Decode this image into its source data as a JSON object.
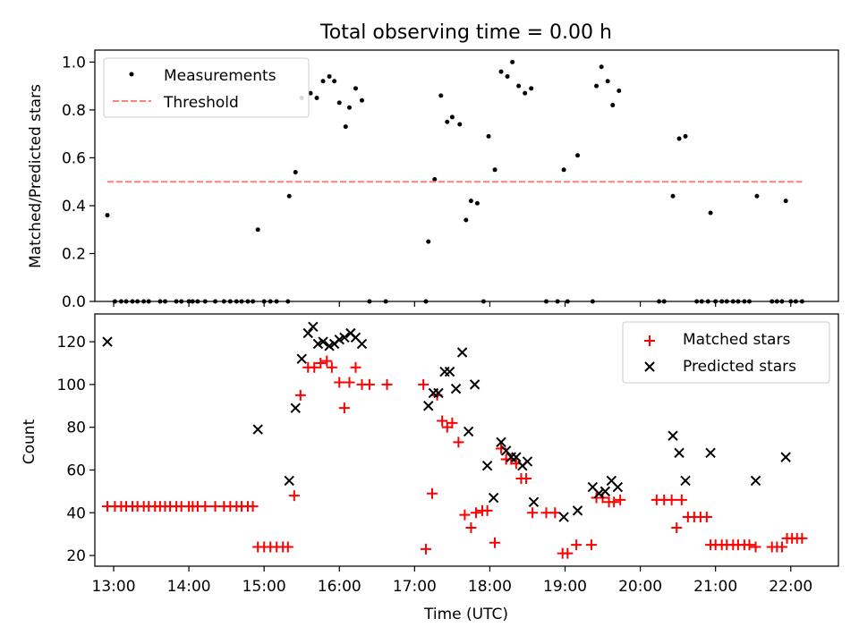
{
  "figure": {
    "title": "Total observing time = 0.00 h"
  },
  "chart_data": [
    {
      "type": "scatter",
      "panel": "top",
      "title": "Total observing time = 0.00 h",
      "xlabel": "",
      "ylabel": "Matched/Predicted stars",
      "xlim": [
        "12:45",
        "22:38"
      ],
      "ylim": [
        0,
        1.05
      ],
      "yticks": [
        "0.0",
        "0.2",
        "0.4",
        "0.6",
        "0.8",
        "1.0"
      ],
      "xtick_times": [
        "13:00",
        "14:00",
        "15:00",
        "16:00",
        "17:00",
        "18:00",
        "19:00",
        "20:00",
        "21:00",
        "22:00"
      ],
      "grid": false,
      "legend_position": "top-left",
      "series": [
        {
          "name": "Measurements",
          "style": "point",
          "color": "#000000",
          "points": [
            [
              "12:55",
              0.36
            ],
            [
              "13:01",
              0.0
            ],
            [
              "13:06",
              0.0
            ],
            [
              "13:10",
              0.0
            ],
            [
              "13:15",
              0.0
            ],
            [
              "13:19",
              0.0
            ],
            [
              "13:24",
              0.0
            ],
            [
              "13:28",
              0.0
            ],
            [
              "13:37",
              0.0
            ],
            [
              "13:41",
              0.0
            ],
            [
              "13:50",
              0.0
            ],
            [
              "13:54",
              0.0
            ],
            [
              "14:00",
              0.0
            ],
            [
              "14:03",
              0.0
            ],
            [
              "14:07",
              0.0
            ],
            [
              "14:13",
              0.0
            ],
            [
              "14:21",
              0.0
            ],
            [
              "14:28",
              0.0
            ],
            [
              "14:33",
              0.0
            ],
            [
              "14:38",
              0.0
            ],
            [
              "14:42",
              0.0
            ],
            [
              "14:47",
              0.0
            ],
            [
              "14:51",
              0.0
            ],
            [
              "14:55",
              0.3
            ],
            [
              "15:00",
              0.0
            ],
            [
              "15:05",
              0.0
            ],
            [
              "15:10",
              0.0
            ],
            [
              "15:19",
              0.0
            ],
            [
              "15:20",
              0.44
            ],
            [
              "15:25",
              0.54
            ],
            [
              "15:30",
              0.85
            ],
            [
              "15:37",
              0.87
            ],
            [
              "15:42",
              0.85
            ],
            [
              "15:47",
              0.92
            ],
            [
              "15:52",
              0.94
            ],
            [
              "15:56",
              0.92
            ],
            [
              "16:00",
              0.83
            ],
            [
              "16:05",
              0.73
            ],
            [
              "16:08",
              0.81
            ],
            [
              "16:13",
              0.89
            ],
            [
              "16:18",
              0.84
            ],
            [
              "16:24",
              0.0
            ],
            [
              "16:37",
              0.0
            ],
            [
              "17:09",
              0.0
            ],
            [
              "17:11",
              0.25
            ],
            [
              "17:16",
              0.51
            ],
            [
              "17:21",
              0.86
            ],
            [
              "17:26",
              0.75
            ],
            [
              "17:30",
              0.77
            ],
            [
              "17:36",
              0.74
            ],
            [
              "17:41",
              0.34
            ],
            [
              "17:45",
              0.42
            ],
            [
              "17:50",
              0.41
            ],
            [
              "17:55",
              0.0
            ],
            [
              "17:59",
              0.69
            ],
            [
              "18:04",
              0.55
            ],
            [
              "18:09",
              0.96
            ],
            [
              "18:14",
              0.94
            ],
            [
              "18:18",
              1.0
            ],
            [
              "18:23",
              0.9
            ],
            [
              "18:28",
              0.87
            ],
            [
              "18:33",
              0.89
            ],
            [
              "18:45",
              0.0
            ],
            [
              "18:54",
              0.0
            ],
            [
              "18:59",
              0.55
            ],
            [
              "19:02",
              0.0
            ],
            [
              "19:10",
              0.61
            ],
            [
              "19:22",
              0.0
            ],
            [
              "19:25",
              0.9
            ],
            [
              "19:29",
              0.98
            ],
            [
              "19:34",
              0.92
            ],
            [
              "19:38",
              0.82
            ],
            [
              "19:43",
              0.88
            ],
            [
              "20:15",
              0.0
            ],
            [
              "20:19",
              0.0
            ],
            [
              "20:26",
              0.44
            ],
            [
              "20:31",
              0.68
            ],
            [
              "20:36",
              0.69
            ],
            [
              "20:45",
              0.0
            ],
            [
              "20:49",
              0.0
            ],
            [
              "20:54",
              0.0
            ],
            [
              "20:56",
              0.37
            ],
            [
              "21:00",
              0.0
            ],
            [
              "21:05",
              0.0
            ],
            [
              "21:09",
              0.0
            ],
            [
              "21:14",
              0.0
            ],
            [
              "21:18",
              0.0
            ],
            [
              "21:23",
              0.0
            ],
            [
              "21:27",
              0.0
            ],
            [
              "21:33",
              0.44
            ],
            [
              "21:45",
              0.0
            ],
            [
              "21:49",
              0.0
            ],
            [
              "21:53",
              0.0
            ],
            [
              "21:56",
              0.42
            ],
            [
              "22:00",
              0.0
            ],
            [
              "22:04",
              0.0
            ],
            [
              "22:09",
              0.0
            ]
          ]
        },
        {
          "name": "Threshold",
          "style": "dashed-line",
          "color": "#ff7f7f",
          "points": [
            [
              "12:55",
              0.5
            ],
            [
              "22:09",
              0.5
            ]
          ]
        }
      ]
    },
    {
      "type": "scatter",
      "panel": "bottom",
      "xlabel": "Time (UTC)",
      "ylabel": "Count",
      "xlim": [
        "12:45",
        "22:38"
      ],
      "ylim": [
        15,
        133
      ],
      "yticks": [
        "20",
        "40",
        "60",
        "80",
        "100",
        "120"
      ],
      "xticks": [
        "13:00",
        "14:00",
        "15:00",
        "16:00",
        "17:00",
        "18:00",
        "19:00",
        "20:00",
        "21:00",
        "22:00"
      ],
      "grid": false,
      "legend_position": "top-right",
      "series": [
        {
          "name": "Matched stars",
          "marker": "plus",
          "color": "#ff0000",
          "points": [
            [
              "12:55",
              43
            ],
            [
              "13:01",
              43
            ],
            [
              "13:06",
              43
            ],
            [
              "13:10",
              43
            ],
            [
              "13:15",
              43
            ],
            [
              "13:19",
              43
            ],
            [
              "13:24",
              43
            ],
            [
              "13:28",
              43
            ],
            [
              "13:33",
              43
            ],
            [
              "13:37",
              43
            ],
            [
              "13:41",
              43
            ],
            [
              "13:45",
              43
            ],
            [
              "13:50",
              43
            ],
            [
              "13:54",
              43
            ],
            [
              "14:00",
              43
            ],
            [
              "14:03",
              43
            ],
            [
              "14:07",
              43
            ],
            [
              "14:13",
              43
            ],
            [
              "14:21",
              43
            ],
            [
              "14:28",
              43
            ],
            [
              "14:33",
              43
            ],
            [
              "14:38",
              43
            ],
            [
              "14:42",
              43
            ],
            [
              "14:47",
              43
            ],
            [
              "14:51",
              43
            ],
            [
              "14:55",
              24
            ],
            [
              "15:00",
              24
            ],
            [
              "15:05",
              24
            ],
            [
              "15:10",
              24
            ],
            [
              "15:15",
              24
            ],
            [
              "15:19",
              24
            ],
            [
              "15:24",
              48
            ],
            [
              "15:29",
              95
            ],
            [
              "15:35",
              108
            ],
            [
              "15:40",
              108
            ],
            [
              "15:45",
              110
            ],
            [
              "15:50",
              111
            ],
            [
              "15:54",
              108
            ],
            [
              "16:00",
              101
            ],
            [
              "16:04",
              89
            ],
            [
              "16:08",
              101
            ],
            [
              "16:13",
              108
            ],
            [
              "16:18",
              100
            ],
            [
              "16:24",
              100
            ],
            [
              "16:38",
              100
            ],
            [
              "17:07",
              100
            ],
            [
              "17:09",
              23
            ],
            [
              "17:14",
              49
            ],
            [
              "17:18",
              95
            ],
            [
              "17:22",
              83
            ],
            [
              "17:26",
              80
            ],
            [
              "17:30",
              82
            ],
            [
              "17:35",
              73
            ],
            [
              "17:40",
              39
            ],
            [
              "17:45",
              33
            ],
            [
              "17:49",
              40
            ],
            [
              "17:54",
              41
            ],
            [
              "17:58",
              41
            ],
            [
              "18:04",
              26
            ],
            [
              "18:09",
              70
            ],
            [
              "18:13",
              65
            ],
            [
              "18:17",
              65
            ],
            [
              "18:21",
              63
            ],
            [
              "18:25",
              56
            ],
            [
              "18:29",
              56
            ],
            [
              "18:34",
              40
            ],
            [
              "18:45",
              40
            ],
            [
              "18:52",
              40
            ],
            [
              "18:58",
              21
            ],
            [
              "19:02",
              21
            ],
            [
              "19:09",
              25
            ],
            [
              "19:21",
              25
            ],
            [
              "19:25",
              47
            ],
            [
              "19:30",
              47
            ],
            [
              "19:35",
              45
            ],
            [
              "19:39",
              45
            ],
            [
              "19:44",
              46
            ],
            [
              "20:13",
              46
            ],
            [
              "20:19",
              46
            ],
            [
              "20:25",
              46
            ],
            [
              "20:29",
              33
            ],
            [
              "20:33",
              46
            ],
            [
              "20:38",
              38
            ],
            [
              "20:43",
              38
            ],
            [
              "20:48",
              38
            ],
            [
              "20:53",
              38
            ],
            [
              "20:56",
              25
            ],
            [
              "21:00",
              25
            ],
            [
              "21:05",
              25
            ],
            [
              "21:09",
              25
            ],
            [
              "21:14",
              25
            ],
            [
              "21:18",
              25
            ],
            [
              "21:23",
              25
            ],
            [
              "21:27",
              25
            ],
            [
              "21:32",
              24
            ],
            [
              "21:45",
              24
            ],
            [
              "21:49",
              24
            ],
            [
              "21:53",
              24
            ],
            [
              "21:57",
              28
            ],
            [
              "22:01",
              28
            ],
            [
              "22:05",
              28
            ],
            [
              "22:09",
              28
            ]
          ]
        },
        {
          "name": "Predicted stars",
          "marker": "x",
          "color": "#000000",
          "points": [
            [
              "12:55",
              120
            ],
            [
              "14:55",
              79
            ],
            [
              "15:20",
              55
            ],
            [
              "15:25",
              89
            ],
            [
              "15:30",
              112
            ],
            [
              "15:35",
              124
            ],
            [
              "15:39",
              127
            ],
            [
              "15:43",
              119
            ],
            [
              "15:47",
              120
            ],
            [
              "15:52",
              118
            ],
            [
              "15:56",
              119
            ],
            [
              "16:00",
              121
            ],
            [
              "16:04",
              122
            ],
            [
              "16:09",
              124
            ],
            [
              "16:13",
              122
            ],
            [
              "16:18",
              119
            ],
            [
              "17:11",
              90
            ],
            [
              "17:15",
              96
            ],
            [
              "17:19",
              96
            ],
            [
              "17:24",
              106
            ],
            [
              "17:28",
              106
            ],
            [
              "17:33",
              98
            ],
            [
              "17:38",
              115
            ],
            [
              "17:43",
              78
            ],
            [
              "17:48",
              100
            ],
            [
              "17:58",
              62
            ],
            [
              "18:03",
              47
            ],
            [
              "18:09",
              73
            ],
            [
              "18:13",
              69
            ],
            [
              "18:17",
              66
            ],
            [
              "18:21",
              66
            ],
            [
              "18:26",
              62
            ],
            [
              "18:30",
              64
            ],
            [
              "18:35",
              45
            ],
            [
              "18:59",
              38
            ],
            [
              "19:10",
              41
            ],
            [
              "19:22",
              52
            ],
            [
              "19:27",
              49
            ],
            [
              "19:32",
              50
            ],
            [
              "19:37",
              55
            ],
            [
              "19:42",
              52
            ],
            [
              "20:26",
              76
            ],
            [
              "20:31",
              68
            ],
            [
              "20:36",
              55
            ],
            [
              "20:56",
              68
            ],
            [
              "21:32",
              55
            ],
            [
              "21:56",
              66
            ]
          ]
        }
      ]
    }
  ]
}
